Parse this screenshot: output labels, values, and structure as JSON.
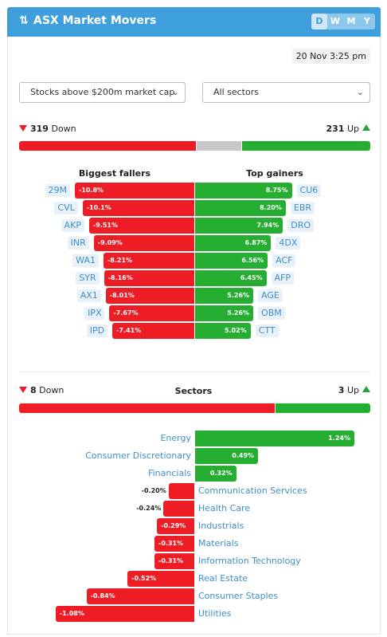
{
  "header": {
    "title": "ASX Market Movers",
    "title_icon": "sort-arrows-icon",
    "periods": [
      {
        "label": "D",
        "active": true
      },
      {
        "label": "W",
        "active": false
      },
      {
        "label": "M",
        "active": false
      },
      {
        "label": "Y",
        "active": false
      }
    ]
  },
  "timestamp": "20 Nov 3:25 pm",
  "filters": {
    "market_cap": "Stocks above $200m market cap",
    "sector": "All sectors"
  },
  "stocks": {
    "down_count": "319",
    "down_label": "Down",
    "up_count": "231",
    "up_label": "Up",
    "breadth": {
      "down": 319,
      "flat": 83,
      "up": 231
    },
    "fallers_title": "Biggest fallers",
    "gainers_title": "Top gainers",
    "fallers": [
      {
        "ticker": "29M",
        "value": -10.8,
        "label": "-10.8%"
      },
      {
        "ticker": "CVL",
        "value": -10.1,
        "label": "-10.1%"
      },
      {
        "ticker": "AKP",
        "value": -9.51,
        "label": "-9.51%"
      },
      {
        "ticker": "INR",
        "value": -9.09,
        "label": "-9.09%"
      },
      {
        "ticker": "WA1",
        "value": -8.21,
        "label": "-8.21%"
      },
      {
        "ticker": "SYR",
        "value": -8.16,
        "label": "-8.16%"
      },
      {
        "ticker": "AX1",
        "value": -8.01,
        "label": "-8.01%"
      },
      {
        "ticker": "IPX",
        "value": -7.67,
        "label": "-7.67%"
      },
      {
        "ticker": "IPD",
        "value": -7.41,
        "label": "-7.41%"
      }
    ],
    "gainers": [
      {
        "ticker": "CU6",
        "value": 8.75,
        "label": "8.75%"
      },
      {
        "ticker": "EBR",
        "value": 8.2,
        "label": "8.20%"
      },
      {
        "ticker": "DRO",
        "value": 7.94,
        "label": "7.94%"
      },
      {
        "ticker": "4DX",
        "value": 6.87,
        "label": "6.87%"
      },
      {
        "ticker": "ACF",
        "value": 6.56,
        "label": "6.56%"
      },
      {
        "ticker": "AFP",
        "value": 6.45,
        "label": "6.45%"
      },
      {
        "ticker": "AGE",
        "value": 5.26,
        "label": "5.26%"
      },
      {
        "ticker": "OBM",
        "value": 5.26,
        "label": "5.26%"
      },
      {
        "ticker": "CTT",
        "value": 5.02,
        "label": "5.02%"
      }
    ]
  },
  "sectors": {
    "title": "Sectors",
    "down_count": "8",
    "down_label": "Down",
    "up_count": "3",
    "up_label": "Up",
    "breadth": {
      "down": 8,
      "up": 3
    },
    "items": [
      {
        "name": "Energy",
        "value": 1.24,
        "label": "1.24%"
      },
      {
        "name": "Consumer Discretionary",
        "value": 0.49,
        "label": "0.49%"
      },
      {
        "name": "Financials",
        "value": 0.32,
        "label": "0.32%"
      },
      {
        "name": "Communication Services",
        "value": -0.2,
        "label": "-0.20%"
      },
      {
        "name": "Health Care",
        "value": -0.24,
        "label": "-0.24%"
      },
      {
        "name": "Industrials",
        "value": -0.29,
        "label": "-0.29%"
      },
      {
        "name": "Materials",
        "value": -0.31,
        "label": "-0.31%"
      },
      {
        "name": "Information Technology",
        "value": -0.31,
        "label": "-0.31%"
      },
      {
        "name": "Real Estate",
        "value": -0.52,
        "label": "-0.52%"
      },
      {
        "name": "Consumer Staples",
        "value": -0.84,
        "label": "-0.84%"
      },
      {
        "name": "Utilities",
        "value": -1.08,
        "label": "-1.08%"
      }
    ]
  },
  "colors": {
    "header": "#3f9fdd",
    "down": "#ee1c25",
    "up": "#26ae33",
    "flat": "#c8c8c8",
    "link": "#3f8fcc"
  }
}
